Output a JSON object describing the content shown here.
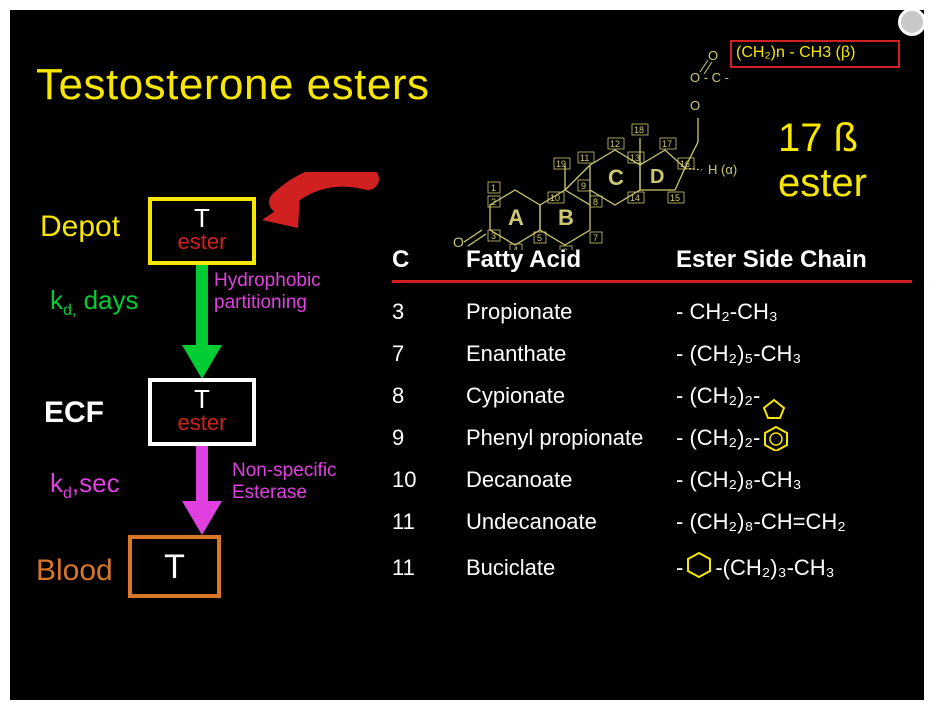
{
  "slide": {
    "title": "Testosterone esters",
    "background": "#000000",
    "title_color": "#f6e600",
    "title_fontsize": 44
  },
  "flow": {
    "depot": {
      "label": "Depot",
      "label_color": "#f6e600",
      "box_border": "#f6e600",
      "line1": "T",
      "line2": "ester",
      "line1_color": "#ffffff",
      "line2_color": "#d02020"
    },
    "ecf": {
      "label": "ECF",
      "label_color": "#ffffff",
      "box_border": "#ffffff",
      "line1": "T",
      "line2": "ester",
      "line1_color": "#ffffff",
      "line2_color": "#d02020"
    },
    "blood": {
      "label": "Blood",
      "label_color": "#d97728",
      "box_border": "#d97728",
      "line1": "T",
      "line1_color": "#ffffff"
    },
    "arrow1": {
      "color": "#00cc33",
      "kd_text_prefix": "k",
      "kd_sub": "d,",
      "kd_text_suffix": " days",
      "kd_color": "#00cc33",
      "note_line1": "Hydrophobic",
      "note_line2": "partitioning",
      "note_color": "#e040e0"
    },
    "arrow2": {
      "color": "#e040e0",
      "kd_text_prefix": "k",
      "kd_sub": "d",
      "kd_text_suffix": ",sec",
      "kd_color": "#e040e0",
      "note_line1": "Non-specific",
      "note_line2": "Esterase",
      "note_color": "#e040e0"
    },
    "return_arrow_color": "#d02020"
  },
  "structure": {
    "line_color": "#ccc870",
    "ring_letters": [
      "A",
      "B",
      "C",
      "D"
    ],
    "carbon_numbers": [
      "1",
      "2",
      "3",
      "4",
      "5",
      "6",
      "7",
      "8",
      "9",
      "10",
      "11",
      "12",
      "13",
      "14",
      "15",
      "16",
      "17",
      "18",
      "19"
    ],
    "top_left_O": "O",
    "top_chain": "O - C -",
    "top_chain_box": "(CH₂)n - CH3 (β)",
    "alpha_label": "H (α)",
    "left_O": "O",
    "beta_label": "17 ß ester",
    "beta_color": "#f6e600",
    "redbox_border": "#d02020"
  },
  "table": {
    "header": {
      "c": "C",
      "fatty": "Fatty Acid",
      "side": "Ester Side Chain"
    },
    "header_fontsize": 24,
    "divider_color": "#d02020",
    "row_fontsize": 22,
    "chain_color": "#f6e600",
    "rows": [
      {
        "c": "3",
        "name": "Propionate",
        "chain_type": "plain",
        "chain": "- CH₂-CH₃"
      },
      {
        "c": "7",
        "name": "Enanthate",
        "chain_type": "plain",
        "chain": "- (CH₂)₅-CH₃"
      },
      {
        "c": "8",
        "name": "Cypionate",
        "chain_type": "cyclopent",
        "prefix": "- (CH₂)₂-"
      },
      {
        "c": "9",
        "name": "Phenyl propionate",
        "chain_type": "phenyl",
        "prefix": "- (CH₂)₂- "
      },
      {
        "c": "10",
        "name": "Decanoate",
        "chain_type": "plain",
        "chain": "- (CH₂)₈-CH₃"
      },
      {
        "c": "11",
        "name": "Undecanoate",
        "chain_type": "plain",
        "chain": "- (CH₂)₈-CH=CH₂"
      },
      {
        "c": "11",
        "name": "Buciclate",
        "chain_type": "cyclohex",
        "prefix": "-",
        "suffix": "-(CH₂)₃-CH₃"
      }
    ]
  }
}
